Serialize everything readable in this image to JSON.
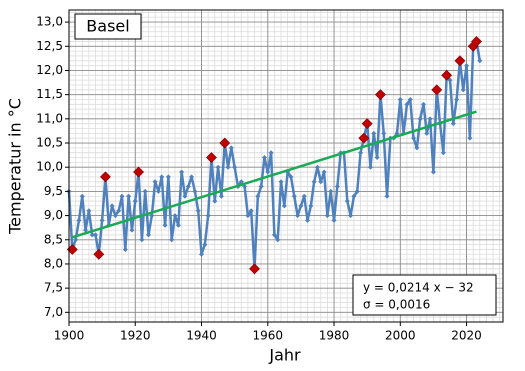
{
  "chart_data": {
    "type": "line",
    "title": "Basel",
    "x_label": "Jahr",
    "y_label": "Temperatur in °C",
    "x": [
      1900,
      1901,
      1902,
      1903,
      1904,
      1905,
      1906,
      1907,
      1908,
      1909,
      1910,
      1911,
      1912,
      1913,
      1914,
      1915,
      1916,
      1917,
      1918,
      1919,
      1920,
      1921,
      1922,
      1923,
      1924,
      1925,
      1926,
      1927,
      1928,
      1929,
      1930,
      1931,
      1932,
      1933,
      1934,
      1935,
      1936,
      1937,
      1938,
      1939,
      1940,
      1941,
      1942,
      1943,
      1944,
      1945,
      1946,
      1947,
      1948,
      1949,
      1950,
      1951,
      1952,
      1953,
      1954,
      1955,
      1956,
      1957,
      1958,
      1959,
      1960,
      1961,
      1962,
      1963,
      1964,
      1965,
      1966,
      1967,
      1968,
      1969,
      1970,
      1971,
      1972,
      1973,
      1974,
      1975,
      1976,
      1977,
      1978,
      1979,
      1980,
      1981,
      1982,
      1983,
      1984,
      1985,
      1986,
      1987,
      1988,
      1989,
      1990,
      1991,
      1992,
      1993,
      1994,
      1995,
      1996,
      1997,
      1998,
      1999,
      2000,
      2001,
      2002,
      2003,
      2004,
      2005,
      2006,
      2007,
      2008,
      2009,
      2010,
      2011,
      2012,
      2013,
      2014,
      2015,
      2016,
      2017,
      2018,
      2019,
      2020,
      2021,
      2022,
      2023,
      2024
    ],
    "values": [
      9.5,
      8.3,
      8.5,
      8.9,
      9.4,
      8.7,
      9.1,
      8.6,
      8.6,
      8.2,
      8.9,
      9.8,
      8.8,
      9.2,
      9.0,
      9.1,
      9.4,
      8.3,
      9.4,
      8.7,
      9.3,
      9.9,
      8.5,
      9.5,
      8.6,
      9.0,
      9.7,
      9.5,
      9.8,
      8.8,
      9.8,
      8.5,
      9.0,
      8.8,
      9.9,
      9.4,
      9.6,
      9.8,
      9.5,
      9.1,
      8.2,
      8.4,
      9.0,
      10.2,
      9.3,
      10.0,
      9.4,
      10.5,
      10.0,
      10.4,
      10.0,
      9.6,
      9.7,
      9.6,
      9.0,
      9.1,
      7.9,
      9.4,
      9.6,
      10.2,
      9.9,
      10.3,
      8.6,
      8.5,
      9.7,
      9.2,
      9.9,
      9.8,
      9.4,
      9.0,
      9.2,
      9.4,
      8.9,
      9.2,
      9.7,
      10.0,
      9.7,
      9.9,
      9.0,
      9.5,
      8.9,
      9.6,
      10.3,
      10.3,
      9.3,
      9.0,
      9.4,
      9.5,
      10.3,
      10.6,
      10.9,
      10.0,
      10.7,
      10.2,
      11.5,
      10.7,
      9.4,
      10.6,
      10.6,
      10.7,
      11.4,
      10.7,
      11.3,
      11.4,
      10.6,
      10.4,
      11.0,
      11.3,
      10.7,
      11.0,
      9.9,
      11.6,
      10.9,
      10.3,
      11.9,
      11.8,
      10.9,
      11.4,
      12.2,
      11.6,
      12.1,
      10.6,
      12.5,
      12.6,
      12.2
    ],
    "color": "#4f81bd",
    "records": {
      "x": [
        1901,
        1909,
        1911,
        1921,
        1943,
        1947,
        1956,
        1989,
        1990,
        1994,
        2011,
        2014,
        2018,
        2022,
        2023
      ],
      "values": [
        8.3,
        8.2,
        9.8,
        9.9,
        10.2,
        10.5,
        7.9,
        10.6,
        10.9,
        11.5,
        11.6,
        11.9,
        12.2,
        12.5,
        12.6
      ],
      "color": "#c00000"
    },
    "trend": {
      "x": [
        1901,
        2023
      ],
      "values": [
        8.55,
        11.15
      ],
      "color": "#1aaa55"
    },
    "annotations": [
      "y = 0,0214 x − 32",
      "σ = 0,0016"
    ],
    "xlim": [
      1900,
      2031
    ],
    "ylim": [
      6.8,
      13.25
    ],
    "xticks": [
      1900,
      1920,
      1940,
      1960,
      1980,
      2000,
      2020
    ],
    "yticks": [
      {
        "value": 7.0,
        "label": "7,0"
      },
      {
        "value": 7.5,
        "label": "7,5"
      },
      {
        "value": 8.0,
        "label": "8,0"
      },
      {
        "value": 8.5,
        "label": "8,5"
      },
      {
        "value": 9.0,
        "label": "9,0"
      },
      {
        "value": 9.5,
        "label": "9,5"
      },
      {
        "value": 10.0,
        "label": "10,0"
      },
      {
        "value": 10.5,
        "label": "10,5"
      },
      {
        "value": 11.0,
        "label": "11,0"
      },
      {
        "value": 11.5,
        "label": "11,5"
      },
      {
        "value": 12.0,
        "label": "12,0"
      },
      {
        "value": 12.5,
        "label": "12,5"
      },
      {
        "value": 13.0,
        "label": "13,0"
      }
    ],
    "grid": true
  }
}
